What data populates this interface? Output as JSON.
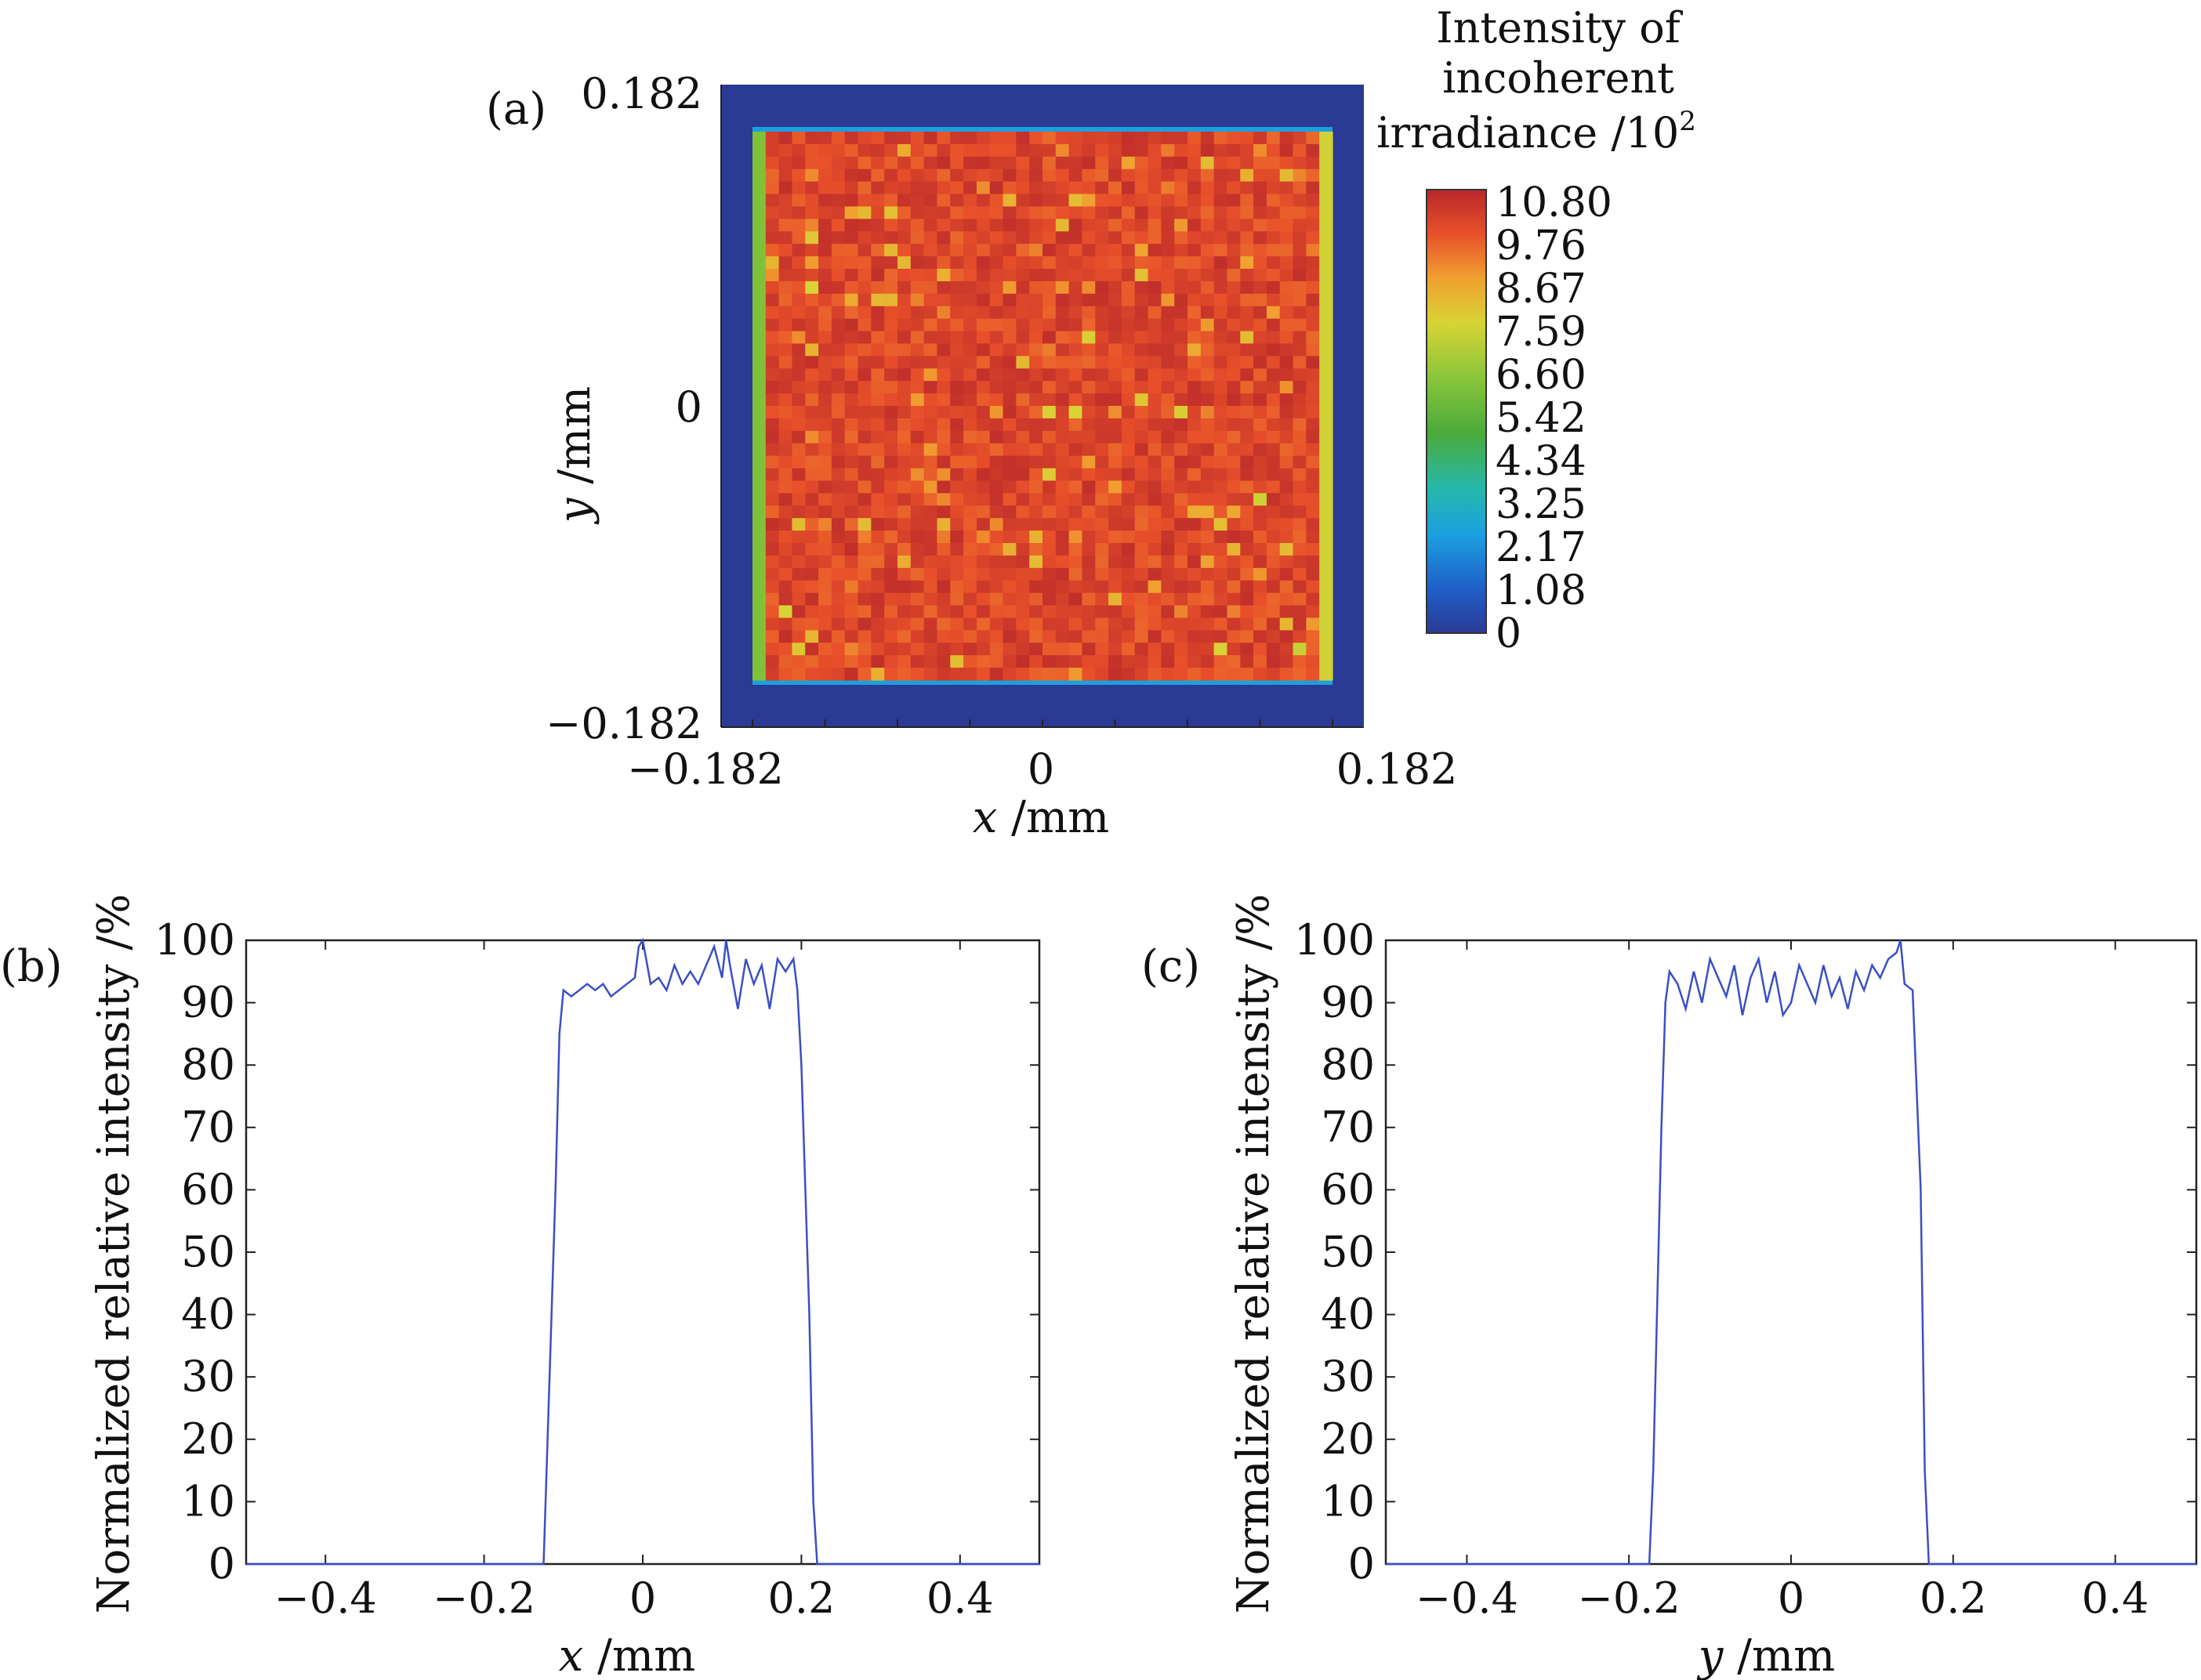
{
  "chart_data": [
    {
      "panel": "(a)",
      "type": "heatmap",
      "xlabel_var": "x",
      "xlabel_unit": " /mm",
      "ylabel_var": "y",
      "ylabel_unit": " /mm",
      "xlim": [
        -0.182,
        0.182
      ],
      "ylim": [
        -0.182,
        0.182
      ],
      "x_ticks": [
        "−0.182",
        "0",
        "0.182"
      ],
      "y_ticks": [
        "0.182",
        "0",
        "−0.182"
      ],
      "colorbar": {
        "title_lines": [
          "Intensity of",
          "incoherent",
          "irradiance /10"
        ],
        "title_superscript": "2",
        "ticks": [
          "10.80",
          "9.76",
          "8.67",
          "7.59",
          "6.60",
          "5.42",
          "4.34",
          "3.25",
          "2.17",
          "1.08",
          "0"
        ],
        "min": 0,
        "max": 10.8
      },
      "description_values": {
        "interior_level": 10.0,
        "left_edge_level": 6.0,
        "right_edge_level": 7.4,
        "top_bottom_edge_level": 2.4,
        "outside_level": 0
      }
    },
    {
      "panel": "(b)",
      "type": "line",
      "xlabel_var": "x",
      "xlabel_unit": " /mm",
      "ylabel": "Normalized relative intensity /%",
      "xlim": [
        -0.5,
        0.5
      ],
      "ylim": [
        0,
        100
      ],
      "x_ticks": [
        "−0.4",
        "−0.2",
        "0",
        "0.2",
        "0.4"
      ],
      "x_tick_values": [
        -0.4,
        -0.2,
        0,
        0.2,
        0.4
      ],
      "y_ticks": [
        "0",
        "10",
        "20",
        "30",
        "40",
        "50",
        "60",
        "70",
        "80",
        "90",
        "100"
      ],
      "series": [
        {
          "color": "#3b4fc4",
          "x": [
            -0.5,
            -0.125,
            -0.12,
            -0.11,
            -0.105,
            -0.1,
            -0.09,
            -0.08,
            -0.07,
            -0.06,
            -0.05,
            -0.04,
            -0.03,
            -0.02,
            -0.01,
            -0.005,
            0.0,
            0.01,
            0.02,
            0.03,
            0.04,
            0.05,
            0.06,
            0.07,
            0.08,
            0.09,
            0.1,
            0.105,
            0.11,
            0.12,
            0.13,
            0.14,
            0.15,
            0.16,
            0.17,
            0.18,
            0.19,
            0.195,
            0.2,
            0.21,
            0.215,
            0.22,
            0.5
          ],
          "y": [
            0,
            0,
            20,
            60,
            85,
            92,
            91,
            92,
            93,
            92,
            93,
            91,
            92,
            93,
            94,
            99,
            100,
            93,
            94,
            92,
            96,
            93,
            95,
            93,
            96,
            99,
            94,
            100,
            96,
            89,
            97,
            93,
            96,
            89,
            97,
            95,
            97,
            92,
            80,
            40,
            10,
            0,
            0
          ]
        }
      ]
    },
    {
      "panel": "(c)",
      "type": "line",
      "xlabel_var": "y",
      "xlabel_unit": " /mm",
      "ylabel": "Normalized relative intensity /%",
      "xlim": [
        -0.5,
        0.5
      ],
      "ylim": [
        0,
        100
      ],
      "x_ticks": [
        "−0.4",
        "−0.2",
        "0",
        "0.2",
        "0.4"
      ],
      "x_tick_values": [
        -0.4,
        -0.2,
        0,
        0.2,
        0.4
      ],
      "y_ticks": [
        "0",
        "10",
        "20",
        "30",
        "40",
        "50",
        "60",
        "70",
        "80",
        "90",
        "100"
      ],
      "series": [
        {
          "color": "#3b4fc4",
          "x": [
            -0.5,
            -0.175,
            -0.17,
            -0.16,
            -0.155,
            -0.15,
            -0.14,
            -0.13,
            -0.12,
            -0.11,
            -0.1,
            -0.09,
            -0.08,
            -0.07,
            -0.06,
            -0.05,
            -0.04,
            -0.03,
            -0.02,
            -0.01,
            0.0,
            0.01,
            0.02,
            0.03,
            0.04,
            0.05,
            0.06,
            0.07,
            0.08,
            0.09,
            0.1,
            0.11,
            0.12,
            0.13,
            0.135,
            0.14,
            0.15,
            0.16,
            0.165,
            0.17,
            0.5
          ],
          "y": [
            0,
            0,
            15,
            70,
            90,
            95,
            93,
            89,
            95,
            90,
            97,
            94,
            91,
            96,
            88,
            94,
            97,
            90,
            95,
            88,
            90,
            96,
            93,
            90,
            96,
            91,
            94,
            89,
            95,
            92,
            96,
            94,
            97,
            98,
            100,
            93,
            92,
            60,
            15,
            0,
            0
          ]
        }
      ]
    }
  ]
}
